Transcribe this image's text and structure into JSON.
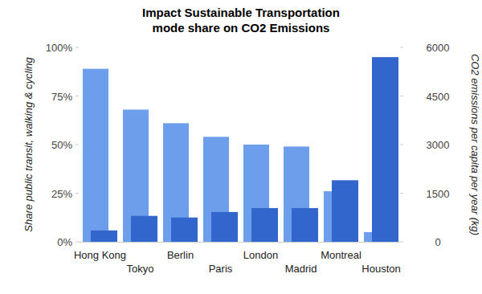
{
  "chart_data": {
    "type": "bar",
    "title": "Impact Sustainable Transportation mode share on CO2 Emissions",
    "categories": [
      "Hong Kong",
      "Tokyo",
      "Berlin",
      "Paris",
      "London",
      "Madrid",
      "Montreal",
      "Houston"
    ],
    "ylabel": "Share public transit, walking & cycling",
    "y2label": "CO2 emissions per capita per year (kg)",
    "series": [
      {
        "color": "#6d9eeb",
        "values": [
          89,
          68,
          61,
          54,
          50,
          49,
          26,
          5
        ]
      },
      {
        "color": "#3366cc",
        "axis": "y2",
        "values": [
          350,
          800,
          750,
          920,
          1040,
          1040,
          1900,
          5700
        ]
      }
    ],
    "ylim": [
      0,
      100
    ],
    "yticks": [
      {
        "value": 0,
        "label": "0%"
      },
      {
        "value": 25,
        "label": "25%"
      },
      {
        "value": 50,
        "label": "50%"
      },
      {
        "value": 75,
        "label": "75%"
      },
      {
        "value": 100,
        "label": "100%"
      }
    ],
    "y2lim": [
      0,
      6000
    ],
    "y2ticks": [
      0,
      1500,
      3000,
      4500,
      6000
    ],
    "grid": false
  }
}
